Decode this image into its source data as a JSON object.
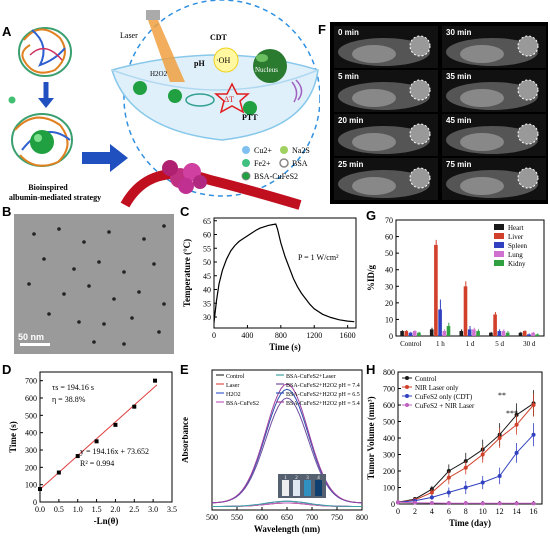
{
  "panel_labels": {
    "A": "A",
    "B": "B",
    "C": "C",
    "D": "D",
    "E": "E",
    "F": "F",
    "G": "G",
    "H": "H"
  },
  "panel_a": {
    "laser": "Laser",
    "cdt": "CDT",
    "ph": "pH",
    "oh": "·OH",
    "h2o2": "H2O2",
    "nucleus": "Nucleus",
    "dt": "ΔT",
    "ptt": "PTT",
    "legend": {
      "cu": "Cu2+",
      "fe": "Fe2+",
      "na2s": "Na2S",
      "bsa": "BSA",
      "bsa_cufes2": "BSA-CuFeS2"
    },
    "caption_line1": "Bioinspired",
    "caption_line2": "albumin-mediated strategy"
  },
  "panel_b": {
    "scale_bar": "50 nm"
  },
  "panel_c": {
    "chart_data": {
      "type": "line",
      "xlabel": "Time (s)",
      "ylabel": "Temperature (°C)",
      "xlim": [
        0,
        1700
      ],
      "ylim": [
        26,
        66
      ],
      "xticks": [
        0,
        400,
        800,
        1200,
        1600
      ],
      "yticks": [
        30,
        35,
        40,
        45,
        50,
        55,
        60,
        65
      ],
      "annotation": "P = 1 W/cm²",
      "x": [
        0,
        30,
        60,
        100,
        150,
        200,
        250,
        300,
        350,
        400,
        450,
        500,
        550,
        600,
        650,
        700,
        740,
        760,
        800,
        850,
        900,
        950,
        1000,
        1050,
        1100,
        1150,
        1200,
        1300,
        1400,
        1500,
        1600,
        1680
      ],
      "y": [
        28,
        36,
        42,
        47,
        51,
        54,
        56,
        57.5,
        58.5,
        59.5,
        60.5,
        61.5,
        62.3,
        62.8,
        63.3,
        63.6,
        63.8,
        62,
        57,
        52,
        48,
        44,
        41,
        38.5,
        36.5,
        34.5,
        33,
        31,
        29.8,
        29,
        28.5,
        28.3
      ]
    }
  },
  "panel_d": {
    "chart_data": {
      "type": "scatter",
      "xlabel": "-Ln(θ)",
      "ylabel": "Time (s)",
      "xlim": [
        0,
        3.5
      ],
      "ylim": [
        0,
        750
      ],
      "xticks": [
        0.0,
        0.5,
        1.0,
        1.5,
        2.0,
        2.5,
        3.0,
        3.5
      ],
      "yticks": [
        0,
        100,
        200,
        300,
        400,
        500,
        600,
        700
      ],
      "x": [
        0.0,
        0.5,
        1.0,
        1.5,
        2.0,
        2.5,
        3.05
      ],
      "y": [
        75,
        170,
        265,
        350,
        445,
        550,
        700
      ],
      "fit": {
        "slope": 194.16,
        "intercept": 73.652
      },
      "annotations": [
        "τs = 194.16 s",
        "η = 38.8%",
        "y = 194.16x + 73.652",
        "R² = 0.994"
      ]
    }
  },
  "panel_e": {
    "chart_data": {
      "type": "line",
      "xlabel": "Wavelength (nm)",
      "ylabel": "Absorbance",
      "xlim": [
        500,
        800
      ],
      "xticks": [
        500,
        550,
        600,
        650,
        700,
        750,
        800
      ],
      "series": [
        {
          "name": "Control",
          "color": "#333333",
          "peak": 0.02
        },
        {
          "name": "Laser",
          "color": "#e05050",
          "peak": 0.02
        },
        {
          "name": "H2O2",
          "color": "#4060d0",
          "peak": 0.03
        },
        {
          "name": "BSA-CuFeS2",
          "color": "#c060c0",
          "peak": 0.02
        },
        {
          "name": "BSA-CuFeS2+Laser",
          "color": "#40a0a0",
          "peak": 0.03
        },
        {
          "name": "BSA-CuFeS2+H2O2 pH = 7.4",
          "color": "#7050a0",
          "peak": 0.6
        },
        {
          "name": "BSA-CuFeS2+H2O2 pH = 6.5",
          "color": "#3050b0",
          "peak": 0.65
        },
        {
          "name": "BSA-CuFeS2+H2O2 pH = 5.4",
          "color": "#a040a0",
          "peak": 0.68
        }
      ],
      "peak_wavelength": 650,
      "inset_numbers": [
        "1",
        "2",
        "3",
        "4"
      ]
    }
  },
  "panel_f": {
    "frames": [
      {
        "label": "0 min"
      },
      {
        "label": "30 min"
      },
      {
        "label": "5 min"
      },
      {
        "label": "35 min"
      },
      {
        "label": "20 min"
      },
      {
        "label": "45 min"
      },
      {
        "label": "25 min"
      },
      {
        "label": "75 min"
      }
    ]
  },
  "panel_g": {
    "chart_data": {
      "type": "bar",
      "ylabel": "%ID/g",
      "ylim": [
        0,
        70
      ],
      "yticks": [
        0,
        10,
        20,
        30,
        40,
        50,
        60,
        70
      ],
      "categories": [
        "Control",
        "1 h",
        "1 d",
        "5 d",
        "30 d"
      ],
      "series": [
        {
          "name": "Heart",
          "color": "#1a1a1a",
          "values": [
            3,
            4,
            3,
            2,
            2
          ],
          "err": [
            0.5,
            1,
            1,
            0.5,
            0.5
          ]
        },
        {
          "name": "Liver",
          "color": "#d0402a",
          "values": [
            3,
            55,
            30,
            13,
            3
          ],
          "err": [
            0.5,
            3,
            3,
            1.5,
            0.5
          ]
        },
        {
          "name": "Spleen",
          "color": "#3040c0",
          "values": [
            2,
            16,
            4,
            3,
            1
          ],
          "err": [
            0.5,
            6,
            2,
            1,
            0.5
          ]
        },
        {
          "name": "Lung",
          "color": "#d070d0",
          "values": [
            3,
            3,
            4,
            3,
            2
          ],
          "err": [
            0.5,
            1,
            1,
            1,
            0.5
          ]
        },
        {
          "name": "Kidny",
          "color": "#30a040",
          "values": [
            2,
            6,
            3,
            2,
            1
          ],
          "err": [
            0.5,
            2,
            1,
            1,
            0.5
          ]
        }
      ],
      "legend_position": "top-right"
    }
  },
  "panel_h": {
    "chart_data": {
      "type": "line",
      "xlabel": "Time (day)",
      "ylabel": "Tumor Volume (mm³)",
      "xlim": [
        0,
        17
      ],
      "ylim": [
        0,
        800
      ],
      "xticks": [
        0,
        2,
        4,
        6,
        8,
        10,
        12,
        14,
        16
      ],
      "yticks": [
        0,
        100,
        200,
        300,
        400,
        500,
        600,
        700,
        800
      ],
      "x": [
        0,
        2,
        4,
        6,
        8,
        10,
        12,
        14,
        16
      ],
      "series": [
        {
          "name": "Control",
          "color": "#1a1a1a",
          "values": [
            10,
            30,
            90,
            200,
            260,
            330,
            420,
            540,
            610
          ],
          "err": [
            5,
            10,
            20,
            40,
            50,
            60,
            70,
            70,
            80
          ]
        },
        {
          "name": "NIR Laser only",
          "color": "#d0402a",
          "values": [
            10,
            25,
            70,
            160,
            220,
            300,
            400,
            480,
            600
          ],
          "err": [
            5,
            10,
            20,
            40,
            40,
            50,
            60,
            60,
            70
          ]
        },
        {
          "name": "CuFeS2 only (CDT)",
          "color": "#3040c0",
          "values": [
            10,
            20,
            40,
            70,
            100,
            130,
            170,
            310,
            420
          ],
          "err": [
            5,
            8,
            15,
            30,
            40,
            40,
            50,
            60,
            70
          ]
        },
        {
          "name": "CuFeS2 + NIR Laser",
          "color": "#c060c0",
          "values": [
            10,
            8,
            6,
            5,
            5,
            4,
            4,
            4,
            4
          ],
          "err": [
            2,
            2,
            2,
            2,
            2,
            2,
            2,
            2,
            2
          ]
        }
      ],
      "significance": [
        "**",
        "***"
      ],
      "legend_position": "top-left"
    }
  }
}
